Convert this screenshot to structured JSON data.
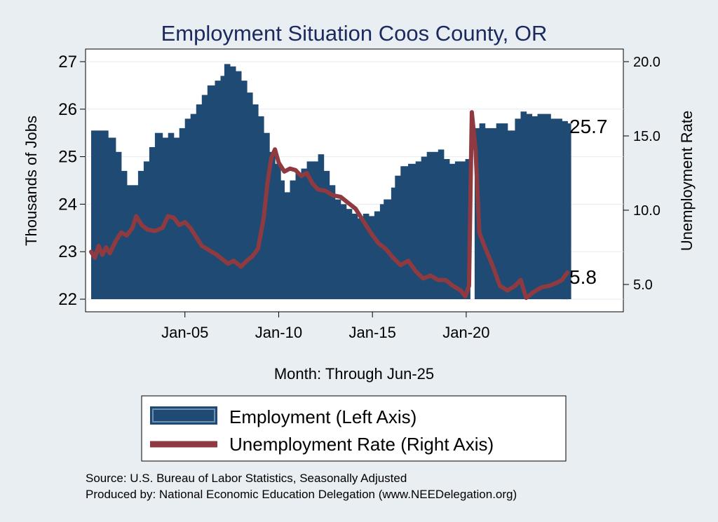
{
  "chart_data": {
    "type": "bar+line",
    "title": "Employment Situation Coos  County, OR",
    "xlabel": "Month: Through Jun-25",
    "ylabel_left": "Thousands of Jobs",
    "ylabel_right": "Unemployment Rate",
    "ylim_left": [
      22,
      27
    ],
    "ylim_right": [
      4.0,
      20.0
    ],
    "yticks_left": [
      "22",
      "23",
      "24",
      "25",
      "26",
      "27"
    ],
    "yticks_right": [
      "5.0",
      "10.0",
      "15.0",
      "20.0"
    ],
    "xticks": [
      "Jan-05",
      "Jan-10",
      "Jan-15",
      "Jan-20"
    ],
    "grid": true,
    "x_start": "Jan-00",
    "x_end": "Jun-25",
    "series": [
      {
        "name": "Employment (Left Axis)",
        "kind": "bar",
        "color": "#1f4a73",
        "points": [
          [
            "2000.0",
            25.55
          ],
          [
            "2000.9",
            25.4
          ],
          [
            "2001.3",
            25.1
          ],
          [
            "2001.6",
            24.7
          ],
          [
            "2001.9",
            24.4
          ],
          [
            "2002.2",
            24.4
          ],
          [
            "2002.5",
            24.7
          ],
          [
            "2002.8",
            24.9
          ],
          [
            "2003.1",
            25.2
          ],
          [
            "2003.4",
            25.5
          ],
          [
            "2003.8",
            25.4
          ],
          [
            "2004.1",
            25.5
          ],
          [
            "2004.4",
            25.4
          ],
          [
            "2004.7",
            25.6
          ],
          [
            "2005.0",
            25.8
          ],
          [
            "2005.3",
            25.9
          ],
          [
            "2005.6",
            26.1
          ],
          [
            "2005.9",
            26.3
          ],
          [
            "2006.2",
            26.5
          ],
          [
            "2006.6",
            26.6
          ],
          [
            "2006.9",
            26.7
          ],
          [
            "2007.1",
            26.95
          ],
          [
            "2007.4",
            26.9
          ],
          [
            "2007.7",
            26.8
          ],
          [
            "2008.0",
            26.6
          ],
          [
            "2008.3",
            26.35
          ],
          [
            "2008.6",
            26.1
          ],
          [
            "2008.9",
            25.85
          ],
          [
            "2009.2",
            25.5
          ],
          [
            "2009.5",
            25.1
          ],
          [
            "2009.8",
            24.85
          ],
          [
            "2010.1",
            24.5
          ],
          [
            "2010.3",
            24.25
          ],
          [
            "2010.6",
            24.5
          ],
          [
            "2010.9",
            24.65
          ],
          [
            "2011.2",
            24.75
          ],
          [
            "2011.5",
            24.9
          ],
          [
            "2011.9",
            24.9
          ],
          [
            "2012.1",
            25.05
          ],
          [
            "2012.4",
            24.7
          ],
          [
            "2012.7",
            24.4
          ],
          [
            "2013.0",
            24.1
          ],
          [
            "2013.3",
            24.0
          ],
          [
            "2013.6",
            23.9
          ],
          [
            "2013.9",
            23.8
          ],
          [
            "2014.2",
            23.7
          ],
          [
            "2014.5",
            23.8
          ],
          [
            "2014.8",
            23.75
          ],
          [
            "2015.1",
            23.85
          ],
          [
            "2015.4",
            24.0
          ],
          [
            "2015.6",
            24.1
          ],
          [
            "2016.0",
            24.35
          ],
          [
            "2016.2",
            24.6
          ],
          [
            "2016.5",
            24.8
          ],
          [
            "2016.9",
            24.85
          ],
          [
            "2017.3",
            24.9
          ],
          [
            "2017.6",
            25.0
          ],
          [
            "2017.9",
            25.1
          ],
          [
            "2018.2",
            25.1
          ],
          [
            "2018.5",
            25.15
          ],
          [
            "2018.8",
            24.95
          ],
          [
            "2019.1",
            24.85
          ],
          [
            "2019.4",
            24.9
          ],
          [
            "2019.7",
            24.9
          ],
          [
            "2019.95",
            24.95
          ],
          [
            "2020.2",
            22.0
          ],
          [
            "2020.45",
            25.6
          ],
          [
            "2020.7",
            25.7
          ],
          [
            "2021.0",
            25.6
          ],
          [
            "2021.3",
            25.6
          ],
          [
            "2021.6",
            25.7
          ],
          [
            "2021.9",
            25.7
          ],
          [
            "2022.2",
            25.55
          ],
          [
            "2022.6",
            25.8
          ],
          [
            "2022.9",
            25.95
          ],
          [
            "2023.2",
            25.9
          ],
          [
            "2023.5",
            25.85
          ],
          [
            "2023.8",
            25.9
          ],
          [
            "2024.2",
            25.9
          ],
          [
            "2024.5",
            25.8
          ],
          [
            "2024.8",
            25.8
          ],
          [
            "2025.1",
            25.75
          ],
          [
            "2025.4",
            25.7
          ]
        ]
      },
      {
        "name": "Unemployment Rate (Right Axis)",
        "kind": "line",
        "color": "#8f3a40",
        "points": [
          [
            "2000.0",
            7.2
          ],
          [
            "2000.2",
            6.8
          ],
          [
            "2000.4",
            7.6
          ],
          [
            "2000.6",
            7.0
          ],
          [
            "2000.8",
            7.5
          ],
          [
            "2001.0",
            7.1
          ],
          [
            "2001.3",
            7.9
          ],
          [
            "2001.6",
            8.5
          ],
          [
            "2001.9",
            8.3
          ],
          [
            "2002.2",
            8.8
          ],
          [
            "2002.4",
            9.6
          ],
          [
            "2002.7",
            9.0
          ],
          [
            "2003.0",
            8.7
          ],
          [
            "2003.4",
            8.6
          ],
          [
            "2003.8",
            8.8
          ],
          [
            "2004.1",
            9.6
          ],
          [
            "2004.4",
            9.5
          ],
          [
            "2004.7",
            9.0
          ],
          [
            "2005.0",
            9.2
          ],
          [
            "2005.3",
            8.8
          ],
          [
            "2005.6",
            8.2
          ],
          [
            "2005.9",
            7.6
          ],
          [
            "2006.3",
            7.3
          ],
          [
            "2006.7",
            7.0
          ],
          [
            "2007.0",
            6.7
          ],
          [
            "2007.3",
            6.4
          ],
          [
            "2007.6",
            6.6
          ],
          [
            "2008.0",
            6.2
          ],
          [
            "2008.3",
            6.6
          ],
          [
            "2008.6",
            6.9
          ],
          [
            "2008.9",
            7.4
          ],
          [
            "2009.2",
            9.5
          ],
          [
            "2009.4",
            11.8
          ],
          [
            "2009.6",
            13.5
          ],
          [
            "2009.8",
            14.1
          ],
          [
            "2010.0",
            13.2
          ],
          [
            "2010.3",
            12.6
          ],
          [
            "2010.6",
            12.8
          ],
          [
            "2010.9",
            12.7
          ],
          [
            "2011.2",
            12.3
          ],
          [
            "2011.5",
            12.5
          ],
          [
            "2011.8",
            11.8
          ],
          [
            "2012.1",
            11.4
          ],
          [
            "2012.5",
            11.3
          ],
          [
            "2012.9",
            11.0
          ],
          [
            "2013.3",
            10.9
          ],
          [
            "2013.7",
            10.5
          ],
          [
            "2014.1",
            10.1
          ],
          [
            "2014.5",
            9.3
          ],
          [
            "2014.9",
            8.5
          ],
          [
            "2015.3",
            7.8
          ],
          [
            "2015.7",
            7.4
          ],
          [
            "2016.1",
            6.8
          ],
          [
            "2016.5",
            6.3
          ],
          [
            "2016.9",
            6.6
          ],
          [
            "2017.3",
            5.9
          ],
          [
            "2017.7",
            5.4
          ],
          [
            "2018.1",
            5.6
          ],
          [
            "2018.5",
            5.3
          ],
          [
            "2018.9",
            5.3
          ],
          [
            "2019.3",
            4.9
          ],
          [
            "2019.7",
            4.6
          ],
          [
            "2019.95",
            4.2
          ],
          [
            "2020.15",
            4.9
          ],
          [
            "2020.3",
            16.6
          ],
          [
            "2020.5",
            14.0
          ],
          [
            "2020.7",
            8.5
          ],
          [
            "2021.0",
            7.5
          ],
          [
            "2021.4",
            6.3
          ],
          [
            "2021.8",
            4.9
          ],
          [
            "2022.2",
            4.6
          ],
          [
            "2022.6",
            4.9
          ],
          [
            "2022.9",
            5.3
          ],
          [
            "2023.2",
            4.1
          ],
          [
            "2023.6",
            4.5
          ],
          [
            "2024.0",
            4.8
          ],
          [
            "2024.4",
            4.9
          ],
          [
            "2024.8",
            5.1
          ],
          [
            "2025.1",
            5.3
          ],
          [
            "2025.4",
            5.8
          ]
        ]
      }
    ],
    "end_labels": {
      "employment": "25.7",
      "unemployment": "5.8"
    },
    "legend_position": "bottom"
  },
  "footnotes": {
    "source": "Source: U.S. Bureau of Labor Statistics, Seasonally Adjusted",
    "producer": "Produced by: National Economic Education Delegation (www.NEEDelegation.org)"
  }
}
